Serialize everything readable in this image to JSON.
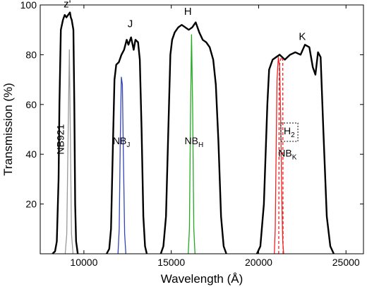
{
  "chart_data": {
    "type": "line",
    "title": "",
    "xlabel": "Wavelength (Å)",
    "ylabel": "Transmission (%)",
    "xlim": [
      7500,
      26000
    ],
    "ylim": [
      0,
      100
    ],
    "xticks": [
      10000,
      15000,
      20000,
      25000
    ],
    "xtick_labels": [
      "10000",
      "15000",
      "20000",
      "25000"
    ],
    "yticks": [
      20,
      40,
      60,
      80,
      100
    ],
    "ytick_labels": [
      "20",
      "40",
      "60",
      "80",
      "100"
    ],
    "grid": false,
    "series": [
      {
        "name": "z'",
        "color": "#000000",
        "style": "solid",
        "points": [
          [
            8200,
            0
          ],
          [
            8350,
            1
          ],
          [
            8450,
            5
          ],
          [
            8550,
            30
          ],
          [
            8600,
            60
          ],
          [
            8680,
            90
          ],
          [
            8800,
            94
          ],
          [
            8900,
            96
          ],
          [
            9000,
            95
          ],
          [
            9100,
            96
          ],
          [
            9200,
            97
          ],
          [
            9250,
            95
          ],
          [
            9300,
            94
          ],
          [
            9400,
            90
          ],
          [
            9450,
            60
          ],
          [
            9500,
            20
          ],
          [
            9550,
            5
          ],
          [
            9650,
            0
          ]
        ]
      },
      {
        "name": "J",
        "color": "#000000",
        "style": "solid",
        "points": [
          [
            11300,
            0
          ],
          [
            11450,
            2
          ],
          [
            11550,
            10
          ],
          [
            11650,
            40
          ],
          [
            11750,
            70
          ],
          [
            11850,
            76
          ],
          [
            12000,
            77
          ],
          [
            12150,
            80
          ],
          [
            12300,
            82
          ],
          [
            12450,
            86
          ],
          [
            12550,
            84
          ],
          [
            12700,
            87
          ],
          [
            12850,
            82
          ],
          [
            12950,
            86
          ],
          [
            13100,
            85
          ],
          [
            13200,
            78
          ],
          [
            13300,
            50
          ],
          [
            13400,
            15
          ],
          [
            13500,
            3
          ],
          [
            13600,
            0
          ]
        ]
      },
      {
        "name": "H",
        "color": "#000000",
        "style": "solid",
        "points": [
          [
            14400,
            0
          ],
          [
            14550,
            3
          ],
          [
            14700,
            15
          ],
          [
            14850,
            55
          ],
          [
            14950,
            80
          ],
          [
            15050,
            86
          ],
          [
            15200,
            89
          ],
          [
            15400,
            91
          ],
          [
            15600,
            92
          ],
          [
            15800,
            91
          ],
          [
            16000,
            90
          ],
          [
            16200,
            91
          ],
          [
            16400,
            93
          ],
          [
            16600,
            89
          ],
          [
            16800,
            86
          ],
          [
            17000,
            85
          ],
          [
            17200,
            83
          ],
          [
            17400,
            78
          ],
          [
            17550,
            68
          ],
          [
            17700,
            45
          ],
          [
            17850,
            15
          ],
          [
            18000,
            3
          ],
          [
            18150,
            0
          ]
        ]
      },
      {
        "name": "K",
        "color": "#000000",
        "style": "solid",
        "points": [
          [
            19900,
            0
          ],
          [
            20100,
            3
          ],
          [
            20300,
            20
          ],
          [
            20500,
            60
          ],
          [
            20600,
            74
          ],
          [
            20800,
            78
          ],
          [
            21000,
            79
          ],
          [
            21200,
            80
          ],
          [
            21500,
            78
          ],
          [
            21800,
            80
          ],
          [
            22100,
            81
          ],
          [
            22400,
            80
          ],
          [
            22650,
            84
          ],
          [
            22900,
            83
          ],
          [
            23100,
            75
          ],
          [
            23250,
            72
          ],
          [
            23400,
            81
          ],
          [
            23550,
            79
          ],
          [
            23700,
            50
          ],
          [
            23900,
            15
          ],
          [
            24100,
            3
          ],
          [
            24300,
            0
          ]
        ]
      },
      {
        "name": "NB921",
        "color": "#999999",
        "style": "solid",
        "points": [
          [
            8930,
            0
          ],
          [
            9020,
            8
          ],
          [
            9100,
            50
          ],
          [
            9170,
            82
          ],
          [
            9220,
            50
          ],
          [
            9290,
            8
          ],
          [
            9380,
            0
          ]
        ]
      },
      {
        "name": "NB_J",
        "color": "#3344bb",
        "style": "solid",
        "points": [
          [
            11950,
            0
          ],
          [
            12020,
            10
          ],
          [
            12080,
            45
          ],
          [
            12140,
            71
          ],
          [
            12200,
            68
          ],
          [
            12260,
            40
          ],
          [
            12330,
            8
          ],
          [
            12400,
            0
          ]
        ]
      },
      {
        "name": "NB_H",
        "color": "#22aa22",
        "style": "solid",
        "points": [
          [
            15970,
            0
          ],
          [
            16040,
            10
          ],
          [
            16100,
            55
          ],
          [
            16160,
            88
          ],
          [
            16220,
            60
          ],
          [
            16290,
            10
          ],
          [
            16360,
            0
          ]
        ]
      },
      {
        "name": "NB_K",
        "color": "#ee2222",
        "style": "solid",
        "points": [
          [
            20900,
            0
          ],
          [
            20950,
            10
          ],
          [
            21000,
            40
          ],
          [
            21050,
            70
          ],
          [
            21130,
            79
          ],
          [
            21200,
            75
          ],
          [
            21260,
            55
          ],
          [
            21320,
            25
          ],
          [
            21380,
            5
          ],
          [
            21430,
            0
          ]
        ]
      },
      {
        "name": "H2",
        "color": "#ee2222",
        "style": "dashed",
        "points": [
          [
            21150,
            0
          ],
          [
            21180,
            75
          ],
          [
            21220,
            77
          ],
          [
            21300,
            79
          ],
          [
            21380,
            78
          ],
          [
            21400,
            0
          ]
        ]
      }
    ],
    "annotations": [
      {
        "text": "z'",
        "x": 9050,
        "y": 99
      },
      {
        "text": "J",
        "x": 12650,
        "y": 91
      },
      {
        "text": "H",
        "x": 15950,
        "y": 96
      },
      {
        "text": "K",
        "x": 22500,
        "y": 86
      },
      {
        "text": "NB921",
        "x": 8850,
        "y": 46,
        "rotate": true
      },
      {
        "text": "NBJ",
        "x": 12150,
        "y": 44
      },
      {
        "text": "NBH",
        "x": 16300,
        "y": 44
      },
      {
        "text": "NBK",
        "x": 21650,
        "y": 39
      },
      {
        "text": "H2",
        "x": 21750,
        "y": 48,
        "boxed": true
      }
    ]
  }
}
